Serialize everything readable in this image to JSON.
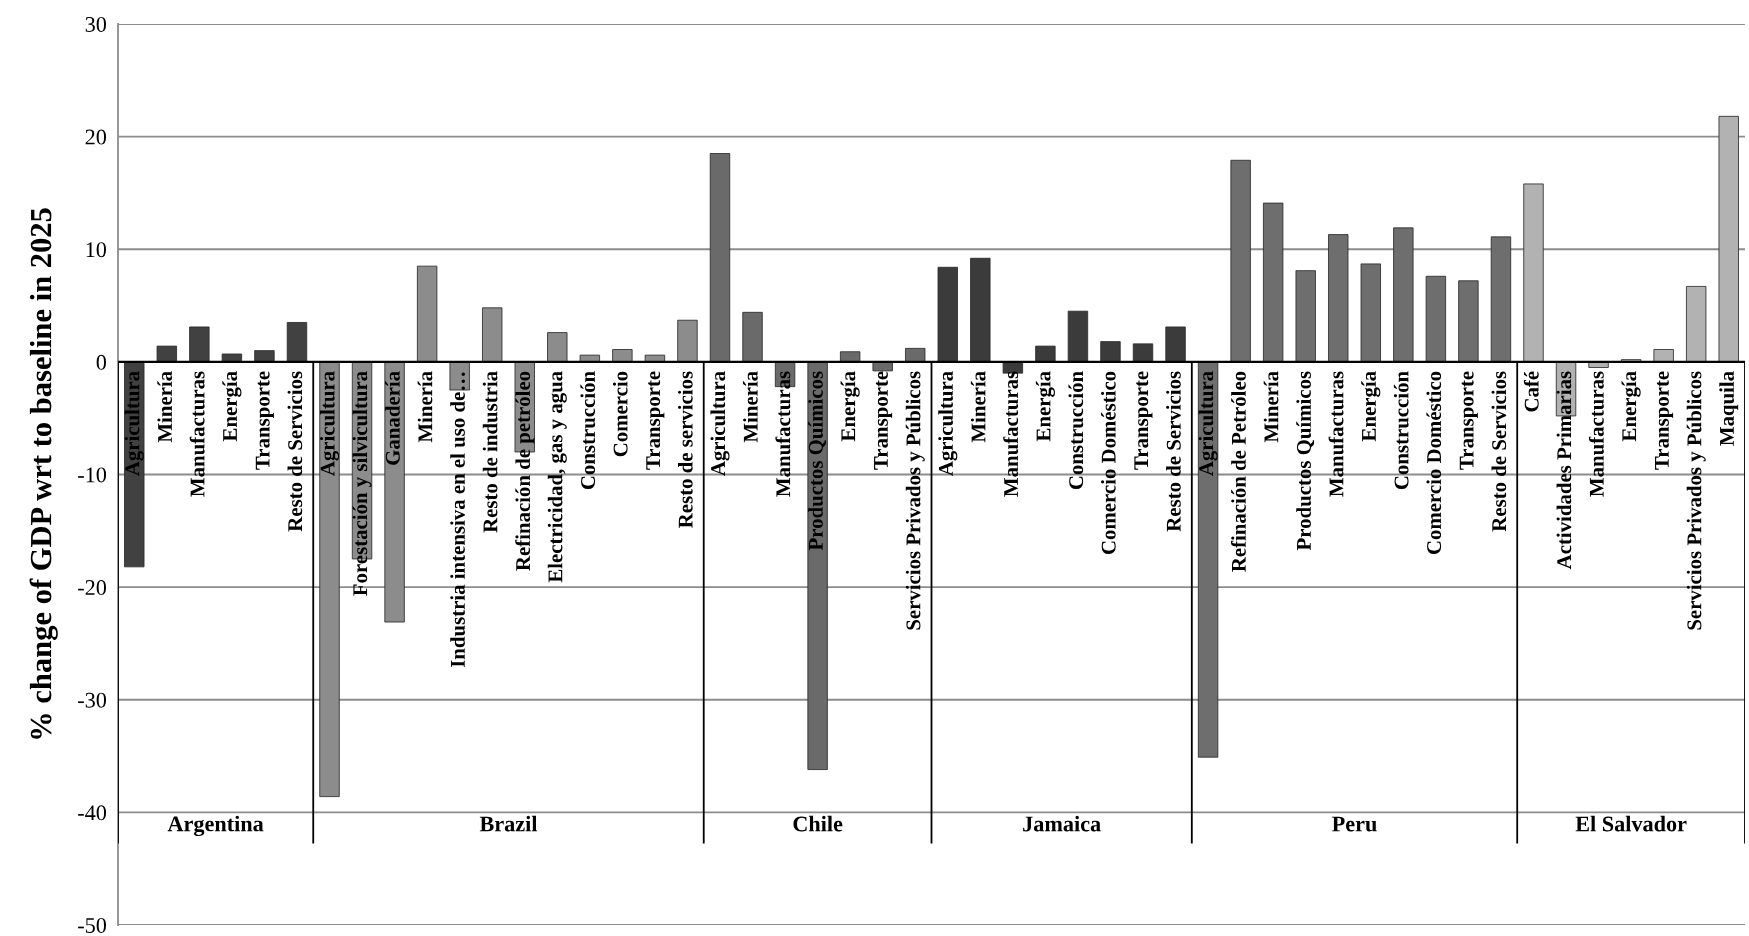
{
  "chart_data": {
    "type": "bar",
    "ylabel": "% change of GDP wrt to baseline in 2025",
    "categories": [
      "Agricultura",
      "Minería",
      "Manufacturas",
      "Energía",
      "Transporte",
      "Resto de Servicios",
      "Agricultura",
      "Forestación y silvicultura",
      "Ganadería",
      "Minería",
      "Industria intensiva en el uso de…",
      "Resto de industria",
      "Refinación de petróleo",
      "Electricidad, gas y agua",
      "Construcción",
      "Comercio",
      "Transporte",
      "Resto de servicios",
      "Agricultura",
      "Minería",
      "Manufacturas",
      "Productos Químicos",
      "Energía",
      "Transporte",
      "Servicios Privados y Públicos",
      "Agricultura",
      "Minería",
      "Manufacturas",
      "Energía",
      "Construcción",
      "Comercio Doméstico",
      "Transporte",
      "Resto de Servicios",
      "Agricultura",
      "Refinación de Petróleo",
      "Minería",
      "Productos Químicos",
      "Manufacturas",
      "Energía",
      "Construcción",
      "Comercio Doméstico",
      "Transporte",
      "Resto de Servicios",
      "Café",
      "Actividades Primarias",
      "Manufacturas",
      "Energía",
      "Transporte",
      "Servicios Privados y Públicos",
      "Maquila"
    ],
    "series": [
      {
        "color": "#414141",
        "values": [
          -18.2,
          1.4,
          3.1,
          0.7,
          1.0,
          3.5,
          null,
          null,
          null,
          null,
          null,
          null,
          null,
          null,
          null,
          null,
          null,
          null,
          null,
          null,
          null,
          null,
          null,
          null,
          null,
          null,
          null,
          null,
          null,
          null,
          null,
          null,
          null,
          null,
          null,
          null,
          null,
          null,
          null,
          null,
          null,
          null,
          null,
          null,
          null,
          null,
          null,
          null,
          null,
          null
        ]
      },
      {
        "color": "#8c8c8c",
        "values": [
          null,
          null,
          null,
          null,
          null,
          null,
          -38.6,
          -17.5,
          -23.1,
          8.5,
          -2.5,
          4.8,
          -8.0,
          2.6,
          0.6,
          1.1,
          0.6,
          3.7,
          null,
          null,
          null,
          null,
          null,
          null,
          null,
          null,
          null,
          null,
          null,
          null,
          null,
          null,
          null,
          null,
          null,
          null,
          null,
          null,
          null,
          null,
          null,
          null,
          null,
          null,
          null,
          null,
          null,
          null,
          null,
          null
        ]
      },
      {
        "color": "#6a6a6a",
        "values": [
          null,
          null,
          null,
          null,
          null,
          null,
          null,
          null,
          null,
          null,
          null,
          null,
          null,
          null,
          null,
          null,
          null,
          null,
          18.5,
          4.4,
          -2.2,
          -36.2,
          0.9,
          -0.8,
          1.2,
          null,
          null,
          null,
          null,
          null,
          null,
          null,
          null,
          null,
          null,
          null,
          null,
          null,
          null,
          null,
          null,
          null,
          null,
          null,
          null,
          null,
          null,
          null,
          null,
          null
        ]
      },
      {
        "color": "#3b3b3b",
        "values": [
          null,
          null,
          null,
          null,
          null,
          null,
          null,
          null,
          null,
          null,
          null,
          null,
          null,
          null,
          null,
          null,
          null,
          null,
          null,
          null,
          null,
          null,
          null,
          null,
          null,
          8.4,
          9.2,
          -1.0,
          1.4,
          4.5,
          1.8,
          1.6,
          3.1,
          null,
          null,
          null,
          null,
          null,
          null,
          null,
          null,
          null,
          null,
          null,
          null,
          null,
          null,
          null,
          null,
          null
        ]
      },
      {
        "color": "#6e6e6e",
        "values": [
          null,
          null,
          null,
          null,
          null,
          null,
          null,
          null,
          null,
          null,
          null,
          null,
          null,
          null,
          null,
          null,
          null,
          null,
          null,
          null,
          null,
          null,
          null,
          null,
          null,
          null,
          null,
          null,
          null,
          null,
          null,
          null,
          null,
          -35.1,
          17.9,
          14.1,
          8.1,
          11.3,
          8.7,
          11.9,
          7.6,
          7.2,
          11.1,
          null,
          null,
          null,
          null,
          null,
          null,
          null
        ]
      },
      {
        "color": "#b2b2b2",
        "values": [
          null,
          null,
          null,
          null,
          null,
          null,
          null,
          null,
          null,
          null,
          null,
          null,
          null,
          null,
          null,
          null,
          null,
          null,
          null,
          null,
          null,
          null,
          null,
          null,
          null,
          null,
          null,
          null,
          null,
          null,
          null,
          null,
          null,
          null,
          null,
          null,
          null,
          null,
          null,
          null,
          null,
          null,
          null,
          15.8,
          -4.8,
          -0.5,
          0.2,
          1.1,
          6.7,
          21.8
        ]
      }
    ],
    "ylim": [
      -50,
      30
    ],
    "yticks": [
      -50,
      -40,
      -30,
      -20,
      -10,
      0,
      10,
      20,
      30
    ],
    "grid": "y",
    "annotations": [
      "Argentina",
      "Brazil",
      "Chile",
      "Jamaica",
      "Peru",
      "El Salvador"
    ]
  }
}
